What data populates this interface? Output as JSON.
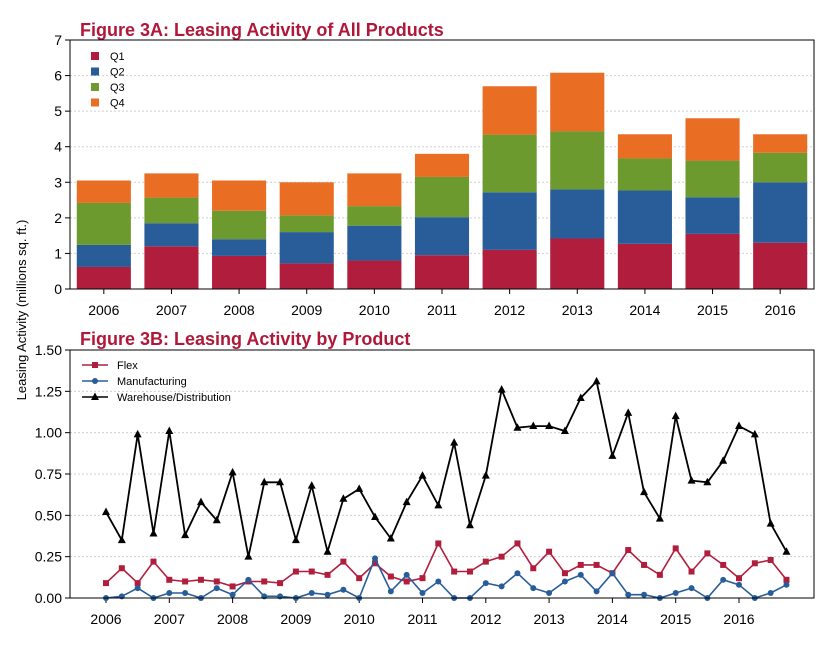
{
  "y_axis_label": "Leasing Activity (millions sq. ft.)",
  "chart_data": [
    {
      "type": "bar",
      "stacked": true,
      "title": "Figure 3A: Leasing Activity of All Products",
      "categories": [
        "2006",
        "2007",
        "2008",
        "2009",
        "2010",
        "2011",
        "2012",
        "2013",
        "2014",
        "2015",
        "2016"
      ],
      "series": [
        {
          "name": "Q1",
          "color": "#b11e3d",
          "values": [
            0.62,
            1.2,
            0.93,
            0.72,
            0.8,
            0.95,
            1.1,
            1.42,
            1.27,
            1.55,
            1.3
          ]
        },
        {
          "name": "Q2",
          "color": "#295d9a",
          "values": [
            0.62,
            0.65,
            0.47,
            0.88,
            0.98,
            1.07,
            1.62,
            1.38,
            1.5,
            1.03,
            1.7
          ]
        },
        {
          "name": "Q3",
          "color": "#6c9a2e",
          "values": [
            1.18,
            0.72,
            0.8,
            0.47,
            0.55,
            1.13,
            1.62,
            1.63,
            0.9,
            1.03,
            0.83
          ]
        },
        {
          "name": "Q4",
          "color": "#ea6d24",
          "values": [
            0.63,
            0.68,
            0.85,
            0.93,
            0.92,
            0.65,
            1.36,
            1.65,
            0.68,
            1.19,
            0.52
          ]
        }
      ],
      "ylim": [
        0,
        7
      ],
      "yticks": [
        "0",
        "1",
        "2",
        "3",
        "4",
        "5",
        "6",
        "7"
      ],
      "legend_position": "top-left",
      "grid": "horizontal dotted"
    },
    {
      "type": "line",
      "title": "Figure 3B: Leasing Activity by Product",
      "x_start": 2006,
      "x_step": 0.25,
      "xticks": [
        "2006",
        "2007",
        "2008",
        "2009",
        "2010",
        "2011",
        "2012",
        "2013",
        "2014",
        "2015",
        "2016"
      ],
      "ylim": [
        0,
        1.5
      ],
      "yticks": [
        "0.00",
        "0.25",
        "0.50",
        "0.75",
        "1.00",
        "1.25",
        "1.50"
      ],
      "legend_position": "top-left",
      "series": [
        {
          "name": "Flex",
          "color": "#b11e3d",
          "marker": "square",
          "values": [
            0.09,
            0.18,
            0.09,
            0.22,
            0.11,
            0.1,
            0.11,
            0.1,
            0.07,
            0.1,
            0.1,
            0.09,
            0.16,
            0.16,
            0.14,
            0.22,
            0.12,
            0.21,
            0.13,
            0.1,
            0.12,
            0.33,
            0.16,
            0.16,
            0.22,
            0.25,
            0.33,
            0.18,
            0.28,
            0.15,
            0.2,
            0.2,
            0.15,
            0.29,
            0.2,
            0.14,
            0.3,
            0.16,
            0.27,
            0.2,
            0.12,
            0.21,
            0.23,
            0.11
          ]
        },
        {
          "name": "Manufacturing",
          "color": "#295d9a",
          "marker": "circle",
          "values": [
            0.0,
            0.01,
            0.06,
            0.0,
            0.03,
            0.03,
            0.0,
            0.06,
            0.02,
            0.11,
            0.01,
            0.01,
            0.0,
            0.03,
            0.02,
            0.05,
            0.0,
            0.24,
            0.04,
            0.14,
            0.03,
            0.1,
            0.0,
            0.0,
            0.09,
            0.07,
            0.15,
            0.06,
            0.03,
            0.1,
            0.14,
            0.04,
            0.15,
            0.02,
            0.02,
            0.0,
            0.03,
            0.06,
            0.0,
            0.11,
            0.08,
            0.0,
            0.03,
            0.08
          ]
        },
        {
          "name": "Warehouse/Distribution",
          "color": "#000000",
          "marker": "triangle",
          "values": [
            0.52,
            0.35,
            0.99,
            0.39,
            1.01,
            0.38,
            0.58,
            0.47,
            0.76,
            0.25,
            0.7,
            0.7,
            0.35,
            0.68,
            0.28,
            0.6,
            0.66,
            0.49,
            0.36,
            0.58,
            0.74,
            0.56,
            0.94,
            0.44,
            0.74,
            1.26,
            1.03,
            1.04,
            1.04,
            1.01,
            1.21,
            1.31,
            0.86,
            1.12,
            0.64,
            0.48,
            1.1,
            0.71,
            0.7,
            0.83,
            1.04,
            0.99,
            0.45,
            0.28
          ]
        }
      ]
    }
  ]
}
